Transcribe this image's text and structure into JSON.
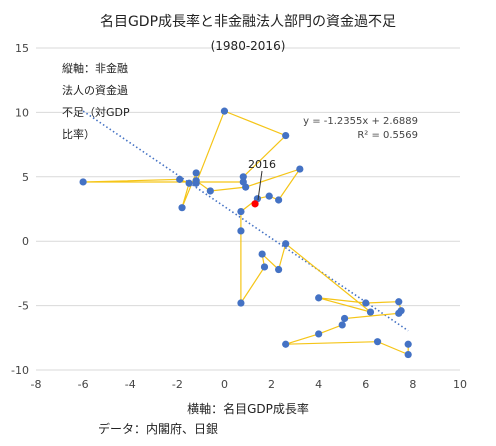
{
  "chart_data": {
    "type": "scatter",
    "title": "名目GDP成長率と非金融法人部門の資金過不足",
    "subtitle": "(1980-2016)",
    "xlabel": "横軸：名目GDP成長率",
    "ylabel_lines": [
      "縦軸：非金融",
      "法人の資金過",
      "不足（対GDP",
      "比率）"
    ],
    "source": "データ：内閣府、日銀",
    "xlim": [
      -8,
      10
    ],
    "ylim": [
      -10,
      15
    ],
    "x_ticks": [
      -8,
      -6,
      -4,
      -2,
      0,
      2,
      4,
      6,
      8,
      10
    ],
    "y_ticks": [
      -10,
      -5,
      0,
      5,
      10,
      15
    ],
    "x_tick_labels": [
      "-8",
      "-6",
      "-4",
      "-2",
      "0",
      "2",
      "4",
      "6",
      "8",
      "10"
    ],
    "y_tick_labels": [
      "-10",
      "-5",
      "0",
      "5",
      "10",
      "15"
    ],
    "grid": "horizontal",
    "series": [
      {
        "style": "connected-scatter",
        "points": [
          [
            7.8,
            -8.0
          ],
          [
            7.8,
            -8.8
          ],
          [
            6.5,
            -7.8
          ],
          [
            2.6,
            -8.0
          ],
          [
            4.0,
            -7.2
          ],
          [
            5.0,
            -6.5
          ],
          [
            5.1,
            -6.0
          ],
          [
            7.4,
            -5.6
          ],
          [
            7.5,
            -5.4
          ],
          [
            7.4,
            -4.7
          ],
          [
            6.0,
            -4.8
          ],
          [
            4.0,
            -4.4
          ],
          [
            6.2,
            -5.5
          ],
          [
            2.6,
            -0.2
          ],
          [
            2.3,
            -2.2
          ],
          [
            1.6,
            -1.0
          ],
          [
            1.7,
            -2.0
          ],
          [
            0.7,
            -4.8
          ],
          [
            0.7,
            0.8
          ],
          [
            0.7,
            2.3
          ],
          [
            1.4,
            3.3
          ],
          [
            1.9,
            3.5
          ],
          [
            2.3,
            3.2
          ],
          [
            3.2,
            5.6
          ],
          [
            0.9,
            4.2
          ],
          [
            -0.6,
            3.9
          ],
          [
            -1.2,
            4.7
          ],
          [
            -1.2,
            5.3
          ],
          [
            -1.8,
            2.6
          ],
          [
            -1.5,
            4.5
          ],
          [
            -1.9,
            4.8
          ],
          [
            -6.0,
            4.6
          ],
          [
            0.8,
            4.6
          ],
          [
            0.8,
            5.0
          ],
          [
            2.6,
            8.2
          ],
          [
            0.0,
            10.1
          ],
          [
            -1.2,
            4.5
          ]
        ],
        "color": "#f5c518"
      },
      {
        "name": "2016",
        "points": [
          [
            1.3,
            2.9
          ]
        ],
        "color": "#ff0000"
      }
    ],
    "points_color": "#4472c4",
    "trendline": {
      "slope": -1.2355,
      "intercept": 2.6889,
      "x_range": [
        -6.0,
        7.8
      ],
      "equation": "y = -1.2355x + 2.6889",
      "r2": "R² = 0.5569",
      "color": "#4472c4"
    },
    "annotations": [
      {
        "text": "2016",
        "x": 1.3,
        "y": 2.9
      }
    ]
  }
}
